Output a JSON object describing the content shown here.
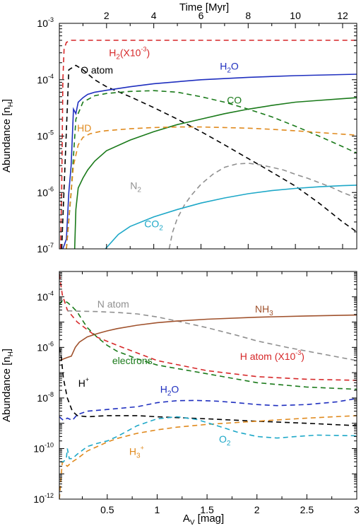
{
  "chart_data": [
    {
      "type": "line",
      "panel": "top",
      "xlabel": "Time [Myr]",
      "ylabel": "Abundance [n_H]",
      "x_axis_position": "top",
      "xlim": [
        0,
        12.6
      ],
      "ylim": [
        1e-07,
        0.001
      ],
      "yscale": "log",
      "x_ticks": [
        2,
        4,
        6,
        8,
        10,
        12
      ],
      "y_ticks": [
        1e-07,
        1e-06,
        1e-05,
        0.0001,
        0.001
      ],
      "y_tick_labels": [
        {
          "base": "10",
          "exp": "-7"
        },
        {
          "base": "10",
          "exp": "-6"
        },
        {
          "base": "10",
          "exp": "-5"
        },
        {
          "base": "10",
          "exp": "-4"
        },
        {
          "base": "10",
          "exp": "-3"
        }
      ],
      "grid": false,
      "series": [
        {
          "id": "h2",
          "color": "#d62728",
          "style": "dashed",
          "x": [
            0.05,
            0.1,
            0.15,
            0.2,
            0.3,
            0.5,
            0.8,
            1.2,
            2,
            4,
            8,
            12.6
          ],
          "y": [
            1e-07,
            1e-06,
            0.0001,
            0.00035,
            0.00046,
            0.0005,
            0.0005,
            0.0005,
            0.0005,
            0.0005,
            0.0005,
            0.0005
          ]
        },
        {
          "id": "o_atom",
          "color": "#000000",
          "style": "dashed",
          "x": [
            0.1,
            0.4,
            0.7,
            1.0,
            1.5,
            2,
            3,
            4,
            5,
            6,
            7,
            8,
            9,
            10,
            11,
            12,
            12.6
          ],
          "y": [
            1e-07,
            0.00015,
            0.00018,
            0.00015,
            0.0001,
            7.5e-05,
            5e-05,
            3.2e-05,
            2e-05,
            1.2e-05,
            7e-06,
            4e-06,
            2.3e-06,
            1.3e-06,
            6.5e-07,
            3e-07,
            2e-07
          ]
        },
        {
          "id": "h2o",
          "color": "#1f2fbf",
          "style": "solid",
          "x": [
            0.15,
            0.3,
            0.4,
            0.5,
            0.6,
            0.7,
            0.8,
            1.0,
            1.2,
            1.5,
            2,
            3,
            4,
            6,
            8,
            10,
            12.6
          ],
          "y": [
            1e-07,
            1.5e-07,
            1e-06,
            3e-06,
            3e-05,
            2.5e-05,
            4e-05,
            4.8e-05,
            5.5e-05,
            6e-05,
            6.5e-05,
            7.5e-05,
            8.5e-05,
            0.0001,
            0.00011,
            0.000118,
            0.000125
          ]
        },
        {
          "id": "co_dash",
          "color": "#1a7a1a",
          "style": "dashed",
          "x": [
            0.3,
            0.5,
            0.7,
            1.0,
            1.5,
            2,
            3,
            4,
            5,
            6,
            7,
            8,
            9,
            10,
            11,
            12,
            12.6
          ],
          "y": [
            1e-07,
            1e-06,
            2e-05,
            4e-05,
            5.2e-05,
            5.7e-05,
            6.2e-05,
            6.4e-05,
            6e-05,
            5e-05,
            4e-05,
            3e-05,
            2.2e-05,
            1.5e-05,
            1e-05,
            6.5e-06,
            5e-06
          ]
        },
        {
          "id": "co",
          "color": "#1a7a1a",
          "style": "solid",
          "x": [
            0.65,
            0.7,
            0.8,
            1.0,
            1.2,
            1.5,
            2,
            3,
            4,
            5,
            6,
            7,
            8,
            9,
            10,
            11,
            12,
            12.6
          ],
          "y": [
            1e-07,
            5e-07,
            1.2e-06,
            1.8e-06,
            2.5e-06,
            3.6e-06,
            5.5e-06,
            8.5e-06,
            1.2e-05,
            1.6e-05,
            2e-05,
            2.5e-05,
            3e-05,
            3.5e-05,
            4e-05,
            4.3e-05,
            4.6e-05,
            4.8e-05
          ]
        },
        {
          "id": "hd",
          "color": "#e08a1e",
          "style": "dashed",
          "x": [
            0.3,
            0.45,
            0.6,
            0.8,
            1.0,
            1.3,
            1.7,
            2,
            3,
            4,
            5,
            6,
            7,
            8,
            9,
            10,
            11,
            12,
            12.6
          ],
          "y": [
            1e-07,
            6e-07,
            3e-06,
            7e-06,
            9.5e-06,
            1.1e-05,
            1.2e-05,
            1.25e-05,
            1.35e-05,
            1.42e-05,
            1.45e-05,
            1.45e-05,
            1.42e-05,
            1.38e-05,
            1.32e-05,
            1.24e-05,
            1.16e-05,
            1.08e-05,
            1.04e-05
          ]
        },
        {
          "id": "n2",
          "color": "#909090",
          "style": "dashed",
          "x": [
            4.65,
            4.8,
            5,
            5.3,
            5.6,
            6,
            6.5,
            7,
            7.5,
            8,
            8.5,
            9,
            9.5,
            10,
            10.5,
            11,
            11.5,
            12,
            12.6
          ],
          "y": [
            1e-07,
            2e-07,
            3.5e-07,
            6e-07,
            9e-07,
            1.4e-06,
            2.1e-06,
            2.8e-06,
            3.2e-06,
            3.3e-06,
            3.1e-06,
            2.8e-06,
            2.5e-06,
            2.1e-06,
            1.8e-06,
            1.5e-06,
            1.25e-06,
            1e-06,
            8e-07
          ]
        },
        {
          "id": "co2",
          "color": "#1ea8c8",
          "style": "solid",
          "x": [
            1.95,
            2.5,
            3,
            4,
            5,
            6,
            7,
            8,
            9,
            10,
            11,
            12,
            12.6
          ],
          "y": [
            1e-07,
            1.8e-07,
            2.5e-07,
            3.7e-07,
            5e-07,
            6.5e-07,
            8e-07,
            9.5e-07,
            1.08e-06,
            1.18e-06,
            1.26e-06,
            1.32e-06,
            1.35e-06
          ]
        }
      ],
      "labels": [
        {
          "id": "o_atom",
          "color": "#000000",
          "text": "O atom",
          "sub": "",
          "sup": "",
          "suffix": "",
          "x": 0.9,
          "y": 0.000128
        },
        {
          "id": "h2",
          "color": "#d62728",
          "text": "H",
          "sub": "2",
          "sup": "",
          "suffix": "(X10",
          "sup2": "-3",
          "suffix2": ")",
          "x": 2.1,
          "y": 0.00026
        },
        {
          "id": "h2o",
          "color": "#1f2fbf",
          "text": "H",
          "sub": "2",
          "sup": "",
          "suffix": "O",
          "x": 6.8,
          "y": 0.00015
        },
        {
          "id": "co",
          "color": "#1a7a1a",
          "text": "CO",
          "sub": "",
          "sup": "",
          "suffix": "",
          "x": 7.1,
          "y": 3.8e-05
        },
        {
          "id": "hd",
          "color": "#e08a1e",
          "text": "HD",
          "sub": "",
          "sup": "",
          "suffix": "",
          "x": 0.75,
          "y": 1.2e-05
        },
        {
          "id": "n2",
          "color": "#909090",
          "text": "N",
          "sub": "2",
          "sup": "",
          "suffix": "",
          "x": 3.0,
          "y": 1.15e-06
        },
        {
          "id": "co2",
          "color": "#1ea8c8",
          "text": "CO",
          "sub": "2",
          "sup": "",
          "suffix": "",
          "x": 3.6,
          "y": 2.4e-07
        }
      ]
    },
    {
      "type": "line",
      "panel": "bottom",
      "xlabel": "A_V [mag]",
      "ylabel": "Abundance [n_H]",
      "x_axis_position": "bottom",
      "xlim": [
        0.02,
        3.0
      ],
      "ylim": [
        1e-12,
        0.001
      ],
      "yscale": "log",
      "x_ticks": [
        0.5,
        1,
        1.5,
        2,
        2.5,
        3
      ],
      "x_tick_labels": [
        "0.5",
        "1",
        "1.5",
        "2",
        "2.5",
        "3"
      ],
      "y_ticks": [
        1e-12,
        1e-10,
        1e-08,
        1e-06,
        0.0001
      ],
      "y_tick_labels": [
        {
          "base": "10",
          "exp": "-12"
        },
        {
          "base": "10",
          "exp": "-10"
        },
        {
          "base": "10",
          "exp": "-8"
        },
        {
          "base": "10",
          "exp": "-6"
        },
        {
          "base": "10",
          "exp": "-4"
        }
      ],
      "grid": false,
      "series": [
        {
          "id": "h_atom",
          "color": "#d62728",
          "style": "dashed",
          "x": [
            0.02,
            0.05,
            0.1,
            0.2,
            0.3,
            0.4,
            0.6,
            0.8,
            1.0,
            1.5,
            2,
            2.5,
            3
          ],
          "y": [
            0.0008,
            0.00012,
            3e-05,
            1e-05,
            5e-06,
            2.5e-06,
            1.2e-06,
            6e-07,
            3e-07,
            1.2e-07,
            7e-08,
            5.5e-08,
            5e-08
          ]
        },
        {
          "id": "electrons",
          "color": "#1a7a1a",
          "style": "dashed",
          "x": [
            0.02,
            0.05,
            0.1,
            0.15,
            0.2,
            0.25,
            0.3,
            0.4,
            0.5,
            0.6,
            0.8,
            1.0,
            1.5,
            2,
            2.5,
            3
          ],
          "y": [
            5e-05,
            7e-05,
            6e-05,
            4e-05,
            2.5e-05,
            1.2e-05,
            6e-06,
            2.5e-06,
            1.2e-06,
            7e-07,
            3.5e-07,
            2e-07,
            9e-08,
            4e-08,
            2.7e-08,
            2.2e-08
          ]
        },
        {
          "id": "n_atom",
          "color": "#909090",
          "style": "dashed",
          "x": [
            0.1,
            0.2,
            0.4,
            0.6,
            0.8,
            1.0,
            1.2,
            1.5,
            1.8,
            2.0,
            2.3,
            2.6,
            3
          ],
          "y": [
            2.8e-05,
            2.7e-05,
            2.6e-05,
            2.4e-05,
            2.1e-05,
            1.6e-05,
            1.1e-05,
            6e-06,
            3e-06,
            1.8e-06,
            1e-06,
            6e-07,
            3e-07
          ]
        },
        {
          "id": "nh3",
          "color": "#a0522d",
          "style": "solid",
          "x": [
            0.02,
            0.1,
            0.14,
            0.18,
            0.22,
            0.3,
            0.4,
            0.5,
            0.6,
            0.8,
            1.0,
            1.2,
            1.5,
            2,
            2.5,
            3
          ],
          "y": [
            3e-07,
            4e-07,
            4.5e-07,
            1e-06,
            1.6e-06,
            2.6e-06,
            3.5e-06,
            4.5e-06,
            5.5e-06,
            7.5e-06,
            9.5e-06,
            1.1e-05,
            1.3e-05,
            1.55e-05,
            1.75e-05,
            1.9e-05
          ]
        },
        {
          "id": "h_plus",
          "color": "#000000",
          "style": "dashed",
          "x": [
            0.02,
            0.04,
            0.06,
            0.1,
            0.15,
            0.2,
            0.3,
            0.5,
            0.8,
            1.0,
            1.5,
            2,
            2.5,
            3
          ],
          "y": [
            1e-06,
            4e-07,
            6e-08,
            1e-08,
            3e-09,
            2e-09,
            1.8e-09,
            2e-09,
            2e-09,
            1.8e-09,
            1.5e-09,
            1.2e-09,
            1e-09,
            8e-10
          ]
        },
        {
          "id": "h2o",
          "color": "#1f2fbf",
          "style": "dashed",
          "x": [
            0.02,
            0.06,
            0.1,
            0.15,
            0.2,
            0.3,
            0.5,
            0.8,
            1.0,
            1.2,
            1.4,
            1.6,
            1.8,
            2.0,
            2.2,
            2.5,
            2.8,
            3
          ],
          "y": [
            1.8e-09,
            1.3e-09,
            1.6e-09,
            1.3e-09,
            2.2e-09,
            3e-09,
            3.5e-09,
            4.5e-09,
            6.5e-09,
            7.8e-09,
            8e-09,
            7.5e-09,
            6.5e-09,
            5.5e-09,
            5e-09,
            5.5e-09,
            7e-09,
            9.5e-09
          ]
        },
        {
          "id": "h3_plus",
          "color": "#e08a1e",
          "style": "dashed",
          "x": [
            0.02,
            0.05,
            0.1,
            0.15,
            0.2,
            0.3,
            0.4,
            0.5,
            0.6,
            0.8,
            1.0,
            1.2,
            1.5,
            2,
            2.5,
            3
          ],
          "y": [
            1e-12,
            3e-11,
            2e-11,
            3e-11,
            4e-11,
            8e-11,
            1.2e-10,
            1.8e-10,
            2.5e-10,
            4e-10,
            5.5e-10,
            7e-10,
            9e-10,
            1.2e-09,
            1.6e-09,
            2e-09
          ]
        },
        {
          "id": "o2",
          "color": "#1ea8c8",
          "style": "dashed",
          "x": [
            0.03,
            0.06,
            0.09,
            0.1,
            0.12,
            0.15,
            0.2,
            0.3,
            0.4,
            0.5,
            0.6,
            0.8,
            1.0,
            1.2,
            1.4,
            1.6,
            1.8,
            2.0,
            2.2,
            2.4,
            2.6,
            2.8,
            3
          ],
          "y": [
            3e-11,
            3e-11,
            4e-11,
            1e-10,
            4e-11,
            4e-11,
            6e-11,
            1.2e-10,
            1.6e-10,
            2e-10,
            3e-10,
            8e-10,
            1.5e-09,
            1.8e-09,
            1.4e-09,
            8e-10,
            4.5e-10,
            3e-10,
            2.6e-10,
            3e-10,
            3.4e-10,
            3.3e-10,
            3.2e-10
          ]
        }
      ],
      "labels": [
        {
          "id": "n_atom",
          "color": "#909090",
          "text": "N atom",
          "sub": "",
          "sup": "",
          "suffix": "",
          "x": 0.4,
          "y": 3.8e-05
        },
        {
          "id": "nh3",
          "color": "#a0522d",
          "text": "NH",
          "sub": "3",
          "sup": "",
          "suffix": "",
          "x": 1.98,
          "y": 2.4e-05
        },
        {
          "id": "electrons",
          "color": "#1a7a1a",
          "text": "electrons",
          "sub": "",
          "sup": "",
          "suffix": "",
          "x": 0.55,
          "y": 2.2e-07
        },
        {
          "id": "h_atom",
          "color": "#d62728",
          "text": "H atom (X10",
          "sub": "",
          "sup": "-3",
          "suffix": ")",
          "x": 1.83,
          "y": 3.2e-07
        },
        {
          "id": "h_plus",
          "color": "#000000",
          "text": "H",
          "sub": "",
          "sup": "+",
          "suffix": "",
          "x": 0.21,
          "y": 2.8e-08
        },
        {
          "id": "h2o",
          "color": "#1f2fbf",
          "text": "H",
          "sub": "2",
          "sup": "",
          "suffix": "O",
          "x": 1.03,
          "y": 1.6e-08
        },
        {
          "id": "o2",
          "color": "#1ea8c8",
          "text": "O",
          "sub": "2",
          "sup": "",
          "suffix": "",
          "x": 1.62,
          "y": 1.7e-10
        },
        {
          "id": "h3_plus",
          "color": "#e08a1e",
          "text": "H",
          "sub": "3",
          "sup": "+",
          "suffix": "",
          "x": 0.72,
          "y": 5.5e-11
        }
      ]
    }
  ]
}
